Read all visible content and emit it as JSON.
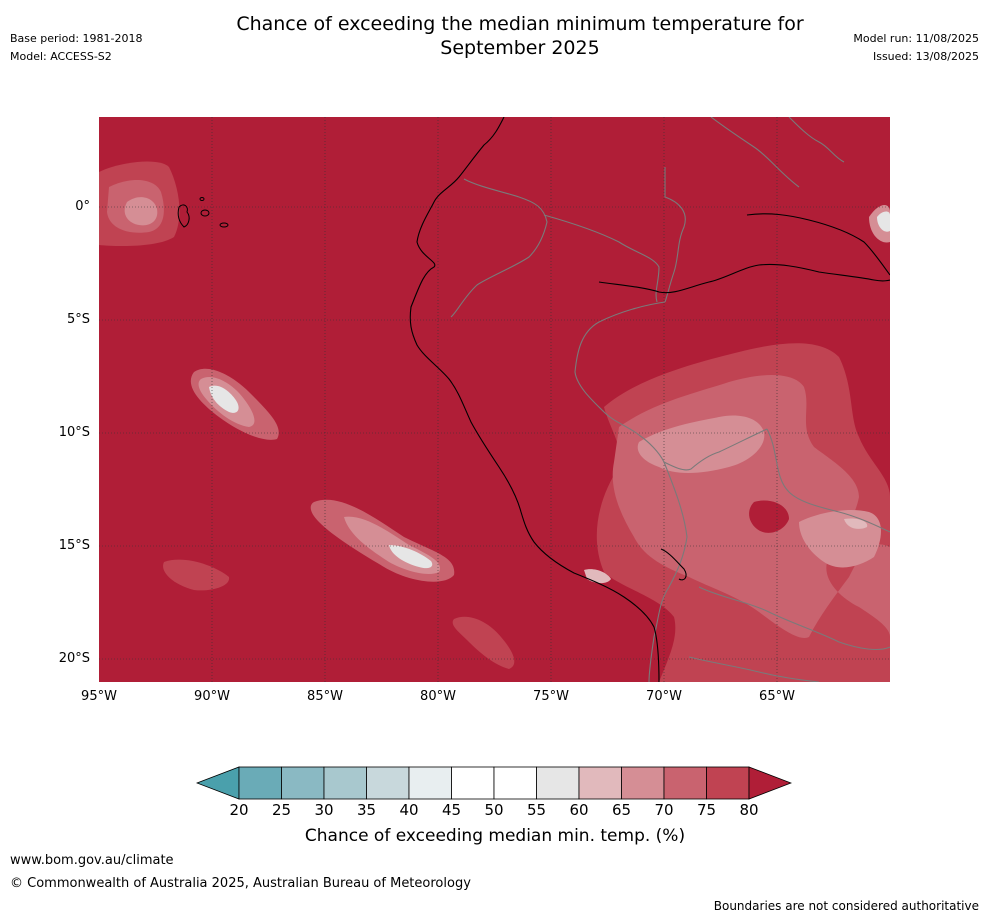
{
  "header": {
    "base_period": "Base period: 1981-2018",
    "model": "Model: ACCESS-S2",
    "title_line1": "Chance of exceeding the median minimum temperature for",
    "title_line2": "September 2025",
    "model_run": "Model run: 11/08/2025",
    "issued": "Issued: 13/08/2025"
  },
  "map": {
    "lat_labels": [
      "0°",
      "5°S",
      "10°S",
      "15°S",
      "20°S"
    ],
    "lon_labels": [
      "95°W",
      "90°W",
      "85°W",
      "80°W",
      "75°W",
      "70°W",
      "65°W"
    ],
    "colors": {
      "ocean_land_fill": "#b01e37",
      "c75": "#c04352",
      "c70": "#c9636f",
      "c65": "#d58e95",
      "c60": "#e1b9bc",
      "c55": "#e6e6e6",
      "coastline": "#000000",
      "borders": "#7a7a7a",
      "grid": "#333333"
    }
  },
  "colorbar": {
    "ticks": [
      "20",
      "25",
      "30",
      "35",
      "40",
      "45",
      "50",
      "55",
      "60",
      "65",
      "70",
      "75",
      "80"
    ],
    "colors": [
      "#6aabb7",
      "#8ab9c3",
      "#a8c8ce",
      "#c8d8dc",
      "#e8eef0",
      "#ffffff",
      "#ffffff",
      "#e6e6e6",
      "#e1b9bc",
      "#d58e95",
      "#c9636f",
      "#c04352"
    ],
    "low_extend_color": "#4aa0ac",
    "high_extend_color": "#b01e37",
    "label": "Chance of exceeding median min. temp. (%)"
  },
  "footer": {
    "url": "www.bom.gov.au/climate",
    "copyright": "© Commonwealth of Australia 2025, Australian Bureau of Meteorology",
    "disclaimer": "Boundaries are not considered authoritative"
  }
}
